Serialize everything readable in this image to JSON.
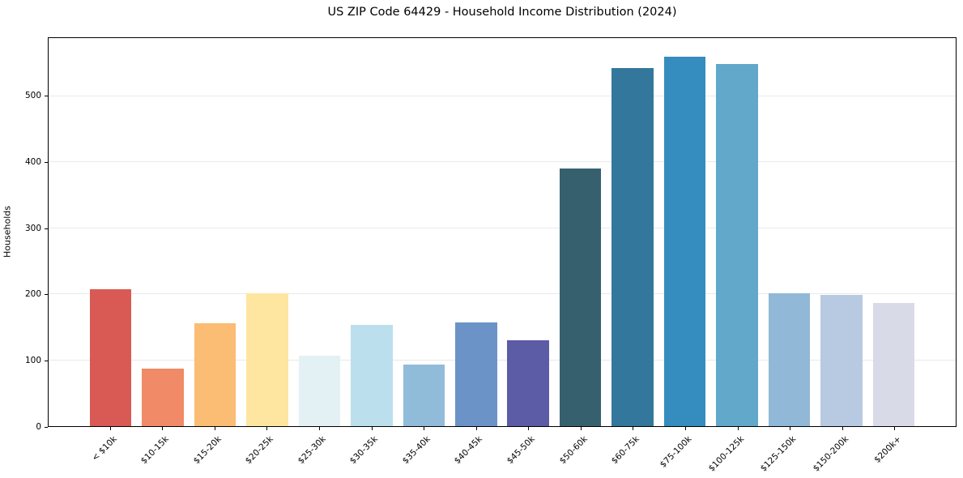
{
  "chart_data": {
    "type": "bar",
    "title": "US ZIP Code 64429 - Household Income Distribution (2024)",
    "ylabel": "Households",
    "xlabel": "",
    "categories": [
      "< $10k",
      "$10-15k",
      "$15-20k",
      "$20-25k",
      "$25-30k",
      "$30-35k",
      "$35-40k",
      "$40-45k",
      "$45-50k",
      "$50-60k",
      "$60-75k",
      "$75-100k",
      "$100-125k",
      "$125-150k",
      "$150-200k",
      "$200k+"
    ],
    "values": [
      208,
      87,
      156,
      201,
      107,
      154,
      93,
      157,
      130,
      390,
      542,
      560,
      549,
      201,
      199,
      186
    ],
    "bar_colors": [
      "#d95a55",
      "#f08a67",
      "#fbbc74",
      "#fee5a0",
      "#e3f1f4",
      "#bcdfed",
      "#91bcd9",
      "#6b93c7",
      "#5c5ba6",
      "#37606f",
      "#33789c",
      "#348dbe",
      "#61a8cb",
      "#91b8d7",
      "#b8cae1",
      "#d8dae8"
    ],
    "yticks": [
      0,
      100,
      200,
      300,
      400,
      500
    ],
    "ylim": [
      0,
      588
    ],
    "bar_width_fraction": 0.8,
    "grid": true,
    "legend": "none",
    "background_color": "#ffffff",
    "gridline_color": "#e9e9e9",
    "spine_color": "#000000",
    "text_color": "#000000"
  }
}
